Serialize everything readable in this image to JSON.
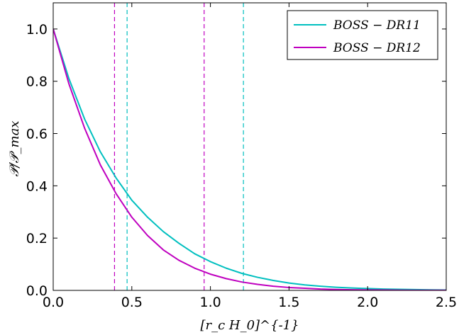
{
  "chart_data": {
    "type": "line",
    "xlabel": "[r_c H_0]^{-1}",
    "ylabel": "𝒫/𝒫_max",
    "xlim": [
      0.0,
      2.5
    ],
    "ylim": [
      0.0,
      1.1
    ],
    "x_ticks": [
      "0.0",
      "0.5",
      "1.0",
      "1.5",
      "2.0",
      "2.5"
    ],
    "y_ticks": [
      "0.0",
      "0.2",
      "0.4",
      "0.6",
      "0.8",
      "1.0"
    ],
    "grid": false,
    "legend_position": "top-right",
    "series": [
      {
        "name": "BOSS − DR11",
        "color": "#00BFBF",
        "x": [
          0.0,
          0.1,
          0.2,
          0.3,
          0.4,
          0.5,
          0.6,
          0.7,
          0.8,
          0.9,
          1.0,
          1.1,
          1.2,
          1.3,
          1.4,
          1.5,
          1.6,
          1.7,
          1.8,
          1.9,
          2.0,
          2.1,
          2.2,
          2.3,
          2.4,
          2.5
        ],
        "y": [
          1.0,
          0.81,
          0.655,
          0.53,
          0.43,
          0.345,
          0.28,
          0.225,
          0.18,
          0.14,
          0.11,
          0.085,
          0.065,
          0.05,
          0.038,
          0.028,
          0.021,
          0.016,
          0.012,
          0.009,
          0.007,
          0.005,
          0.004,
          0.003,
          0.002,
          0.0015
        ]
      },
      {
        "name": "BOSS − DR12",
        "color": "#BF00BF",
        "x": [
          0.0,
          0.1,
          0.2,
          0.3,
          0.4,
          0.5,
          0.6,
          0.7,
          0.8,
          0.9,
          1.0,
          1.1,
          1.2,
          1.3,
          1.4,
          1.5,
          1.6,
          1.7,
          1.8,
          1.9,
          2.0,
          2.1,
          2.2,
          2.3,
          2.4,
          2.5
        ],
        "y": [
          1.0,
          0.79,
          0.62,
          0.48,
          0.37,
          0.28,
          0.21,
          0.155,
          0.115,
          0.085,
          0.062,
          0.045,
          0.032,
          0.023,
          0.016,
          0.011,
          0.008,
          0.005,
          0.0035,
          0.0025,
          0.0017,
          0.0012,
          0.0008,
          0.0005,
          0.0003,
          0.0002
        ]
      }
    ],
    "vlines": [
      {
        "x": 0.39,
        "color": "#BF00BF"
      },
      {
        "x": 0.47,
        "color": "#00BFBF"
      },
      {
        "x": 0.96,
        "color": "#BF00BF"
      },
      {
        "x": 1.21,
        "color": "#00BFBF"
      }
    ]
  }
}
